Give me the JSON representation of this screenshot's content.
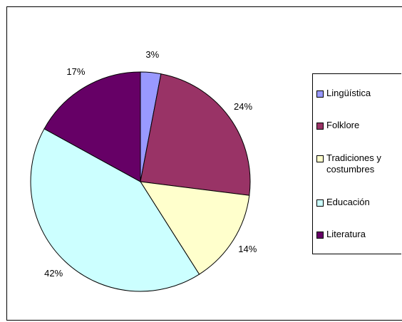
{
  "chart_data": {
    "type": "pie",
    "categories": [
      "Lingüística",
      "Folklore",
      "Tradiciones y costumbres",
      "Educación",
      "Literatura"
    ],
    "values": [
      3,
      24,
      14,
      42,
      17
    ],
    "value_labels": [
      "3%",
      "24%",
      "14%",
      "42%",
      "17%"
    ],
    "colors": [
      "#9999ff",
      "#993366",
      "#ffffcc",
      "#ccffff",
      "#660066"
    ],
    "legend": "right"
  }
}
